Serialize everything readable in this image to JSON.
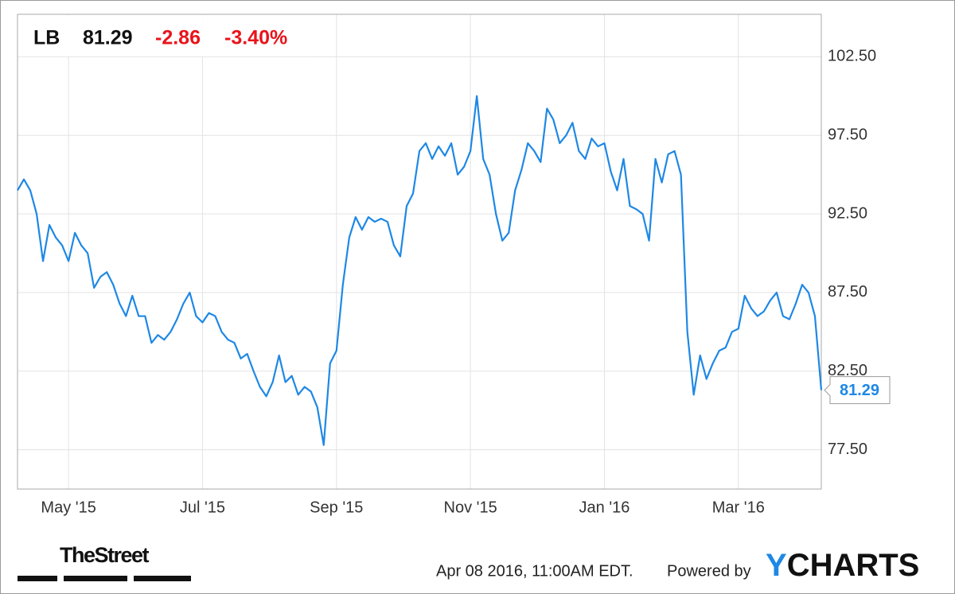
{
  "chart_data": {
    "type": "line",
    "header": {
      "symbol": "LB",
      "price": "81.29",
      "change": "-2.86",
      "change_pct": "-3.40%"
    },
    "categories": [
      null,
      null,
      null,
      null,
      null,
      null,
      null,
      null,
      "May '15",
      null,
      null,
      null,
      null,
      null,
      null,
      null,
      null,
      null,
      null,
      null,
      null,
      null,
      null,
      null,
      null,
      null,
      null,
      null,
      null,
      "Jul '15",
      null,
      null,
      null,
      null,
      null,
      null,
      null,
      null,
      null,
      null,
      null,
      null,
      null,
      null,
      null,
      null,
      null,
      null,
      null,
      null,
      "Sep '15",
      null,
      null,
      null,
      null,
      null,
      null,
      null,
      null,
      null,
      null,
      null,
      null,
      null,
      null,
      null,
      null,
      null,
      null,
      null,
      null,
      "Nov '15",
      null,
      null,
      null,
      null,
      null,
      null,
      null,
      null,
      null,
      null,
      null,
      null,
      null,
      null,
      null,
      null,
      null,
      null,
      null,
      null,
      "Jan '16",
      null,
      null,
      null,
      null,
      null,
      null,
      null,
      null,
      null,
      null,
      null,
      null,
      null,
      null,
      null,
      null,
      null,
      null,
      null,
      null,
      "Mar '16",
      null,
      null,
      null,
      null,
      null,
      null,
      null,
      null,
      null,
      null,
      null,
      null,
      null
    ],
    "series": [
      {
        "color": "#1e88e5",
        "values": [
          94.0,
          94.7,
          94.0,
          92.5,
          89.5,
          91.8,
          91.0,
          90.5,
          89.5,
          91.3,
          90.5,
          90.0,
          87.8,
          88.5,
          88.8,
          88.0,
          86.8,
          86.0,
          87.3,
          86.0,
          86.0,
          84.3,
          84.8,
          84.5,
          85.0,
          85.8,
          86.8,
          87.5,
          86.0,
          85.6,
          86.2,
          86.0,
          85.0,
          84.5,
          84.3,
          83.3,
          83.6,
          82.5,
          81.5,
          80.9,
          81.8,
          83.5,
          81.8,
          82.2,
          81.0,
          81.5,
          81.2,
          80.2,
          77.8,
          83.0,
          83.8,
          88.0,
          91.0,
          92.3,
          91.5,
          92.3,
          92.0,
          92.2,
          92.0,
          90.5,
          89.8,
          93.0,
          93.8,
          96.5,
          97.0,
          96.0,
          96.8,
          96.2,
          97.0,
          95.0,
          95.5,
          96.5,
          100.0,
          96.0,
          95.0,
          92.5,
          90.8,
          91.3,
          94.0,
          95.3,
          97.0,
          96.5,
          95.8,
          99.2,
          98.5,
          97.0,
          97.5,
          98.3,
          96.5,
          96.0,
          97.3,
          96.8,
          97.0,
          95.2,
          94.0,
          96.0,
          93.0,
          92.8,
          92.5,
          90.8,
          96.0,
          94.5,
          96.3,
          96.5,
          95.0,
          85.0,
          81.0,
          83.5,
          82.0,
          83.0,
          83.8,
          84.0,
          85.0,
          85.2,
          87.3,
          86.5,
          86.0,
          86.3,
          87.0,
          87.5,
          86.0,
          85.8,
          86.8,
          88.0,
          87.5,
          86.0,
          81.29
        ]
      }
    ],
    "ylim": [
      75,
      105.2
    ],
    "yticks": [
      {
        "value": 77.5,
        "label": "77.50"
      },
      {
        "value": 82.5,
        "label": "82.50"
      },
      {
        "value": 87.5,
        "label": "87.50"
      },
      {
        "value": 92.5,
        "label": "92.50"
      },
      {
        "value": 97.5,
        "label": "97.50"
      },
      {
        "value": 102.5,
        "label": "102.50"
      }
    ],
    "grid": true,
    "logo": "TheStreet",
    "timestamp": "Apr 08 2016, 11:00AM EDT.",
    "credit": "Powered by",
    "brand_y": "Y",
    "brand_rest": "CHARTS"
  }
}
